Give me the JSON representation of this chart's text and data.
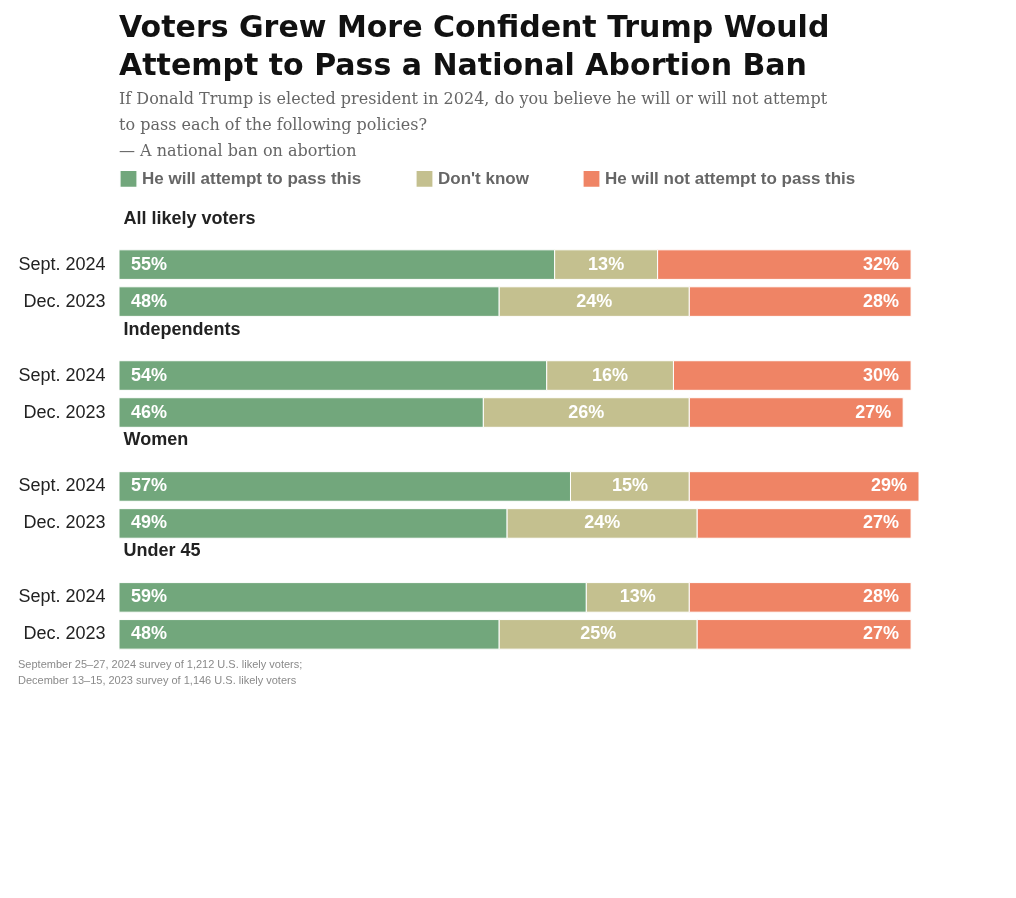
{
  "chart_data": {
    "type": "bar",
    "orientation": "horizontal",
    "stacked": true,
    "title": "Voters Grew More Confident Trump Would Attempt to Pass a National Abortion Ban",
    "subtitle": "If Donald Trump is elected president in 2024, do you believe he will or will not attempt to pass each of the following policies?\n— A national ban on abortion",
    "categories": [
      "All likely voters",
      "Sept. 2024",
      "Dec. 2023",
      "Independents",
      "Sept. 2024",
      "Dec. 2023",
      "Women",
      "Sept. 2024",
      "Dec. 2023",
      "Under 45",
      "Sept. 2024",
      "Dec. 2023"
    ],
    "series": [
      {
        "name": "He will attempt to pass this",
        "color": "#72a77c",
        "values": [
          null,
          55,
          48,
          null,
          54,
          46,
          null,
          57,
          49,
          null,
          59,
          48
        ],
        "value_labels": [
          null,
          "55%",
          "48%",
          null,
          "54%",
          "46%",
          null,
          "57%",
          "49%",
          null,
          "59%",
          "48%"
        ]
      },
      {
        "name": "Don't know",
        "color": "#c4c08f",
        "values": [
          null,
          13,
          24,
          null,
          16,
          26,
          null,
          15,
          24,
          null,
          13,
          25
        ],
        "value_labels": [
          null,
          "13%",
          "24%",
          null,
          "16%",
          "26%",
          null,
          "15%",
          "24%",
          null,
          "13%",
          "25%"
        ]
      },
      {
        "name": "He will not attempt to pass this",
        "color": "#ef8465",
        "values": [
          null,
          32,
          28,
          null,
          30,
          27,
          null,
          29,
          27,
          null,
          28,
          27
        ],
        "value_labels": [
          null,
          "32%",
          "28%",
          null,
          "30%",
          "27%",
          null,
          "29%",
          "27%",
          null,
          "28%",
          "27%"
        ]
      }
    ],
    "legend": "top",
    "tick_labels": "y",
    "grid": false,
    "annotations": [
      "September 25–27, 2024 survey of 1,212 U.S. likely voters;",
      "December 13–15, 2023 survey of 1,146 U.S. likely voters"
    ]
  }
}
